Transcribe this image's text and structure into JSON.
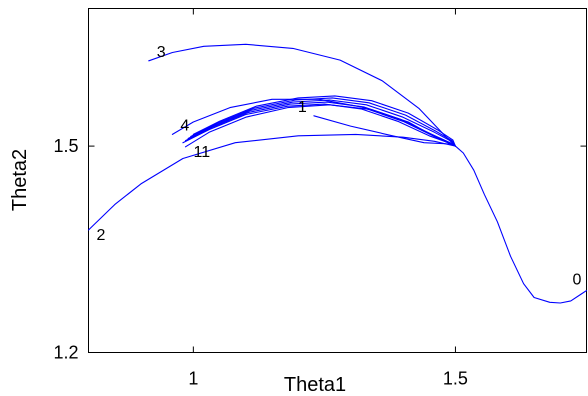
{
  "chart_data": {
    "type": "line",
    "xlabel": "Theta1",
    "ylabel": "Theta2",
    "xlim": [
      0.8,
      1.75
    ],
    "ylim": [
      1.2,
      1.7
    ],
    "xticks": [
      1,
      1.5
    ],
    "yticks": [
      1.2,
      1.5
    ],
    "xtick_labels": [
      "1",
      "1.5"
    ],
    "ytick_labels": [
      "1.2",
      "1.5"
    ],
    "grid": false,
    "line_color": "#0000ff",
    "series": [
      {
        "label": "0",
        "x": [
          1.75,
          1.74,
          1.72,
          1.7,
          1.68,
          1.65,
          1.63,
          1.605,
          1.58,
          1.555,
          1.535,
          1.515,
          1.5
        ],
        "y": [
          1.29,
          1.285,
          1.275,
          1.272,
          1.273,
          1.28,
          1.3,
          1.34,
          1.39,
          1.43,
          1.465,
          1.49,
          1.5
        ]
      },
      {
        "label": "1",
        "x": [
          1.23,
          1.3,
          1.38,
          1.44,
          1.49,
          1.5
        ],
        "y": [
          1.544,
          1.529,
          1.515,
          1.505,
          1.503,
          1.5
        ]
      },
      {
        "label": "2",
        "x": [
          0.8,
          0.85,
          0.9,
          0.98,
          1.08,
          1.2,
          1.31,
          1.4,
          1.46,
          1.5
        ],
        "y": [
          1.378,
          1.415,
          1.445,
          1.482,
          1.505,
          1.515,
          1.517,
          1.513,
          1.507,
          1.5
        ]
      },
      {
        "label": "3",
        "x": [
          0.915,
          0.96,
          1.02,
          1.1,
          1.19,
          1.28,
          1.36,
          1.43,
          1.48,
          1.5
        ],
        "y": [
          1.624,
          1.636,
          1.645,
          1.648,
          1.642,
          1.625,
          1.595,
          1.555,
          1.515,
          1.5
        ]
      },
      {
        "label": "4",
        "x": [
          0.96,
          1.0,
          1.07,
          1.15,
          1.24,
          1.32,
          1.4,
          1.46,
          1.5
        ],
        "y": [
          1.517,
          1.535,
          1.556,
          1.568,
          1.568,
          1.557,
          1.536,
          1.514,
          1.5
        ]
      },
      {
        "label": "",
        "x": [
          0.98,
          1.03,
          1.1,
          1.18,
          1.25,
          1.32,
          1.39,
          1.45,
          1.49,
          1.5
        ],
        "y": [
          1.505,
          1.524,
          1.546,
          1.558,
          1.561,
          1.554,
          1.536,
          1.515,
          1.504,
          1.5
        ]
      },
      {
        "label": "",
        "x": [
          0.985,
          1.035,
          1.105,
          1.185,
          1.255,
          1.325,
          1.395,
          1.455,
          1.49,
          1.5
        ],
        "y": [
          1.508,
          1.527,
          1.549,
          1.561,
          1.564,
          1.557,
          1.539,
          1.517,
          1.505,
          1.5
        ]
      },
      {
        "label": "",
        "x": [
          0.99,
          1.04,
          1.11,
          1.19,
          1.26,
          1.33,
          1.4,
          1.46,
          1.492,
          1.5
        ],
        "y": [
          1.511,
          1.53,
          1.552,
          1.564,
          1.567,
          1.56,
          1.542,
          1.52,
          1.507,
          1.5
        ]
      },
      {
        "label": "",
        "x": [
          0.995,
          1.045,
          1.115,
          1.195,
          1.265,
          1.335,
          1.405,
          1.462,
          1.493,
          1.5
        ],
        "y": [
          1.514,
          1.533,
          1.555,
          1.567,
          1.57,
          1.563,
          1.545,
          1.522,
          1.508,
          1.5
        ]
      },
      {
        "label": "",
        "x": [
          1.0,
          1.05,
          1.12,
          1.2,
          1.27,
          1.34,
          1.41,
          1.465,
          1.495,
          1.5
        ],
        "y": [
          1.517,
          1.536,
          1.558,
          1.57,
          1.573,
          1.566,
          1.548,
          1.524,
          1.509,
          1.5
        ]
      },
      {
        "label": "11",
        "x": [
          0.985,
          1.03,
          1.1,
          1.18,
          1.26,
          1.34,
          1.41,
          1.46,
          1.5
        ],
        "y": [
          1.499,
          1.52,
          1.542,
          1.556,
          1.56,
          1.553,
          1.535,
          1.514,
          1.5
        ]
      }
    ]
  }
}
